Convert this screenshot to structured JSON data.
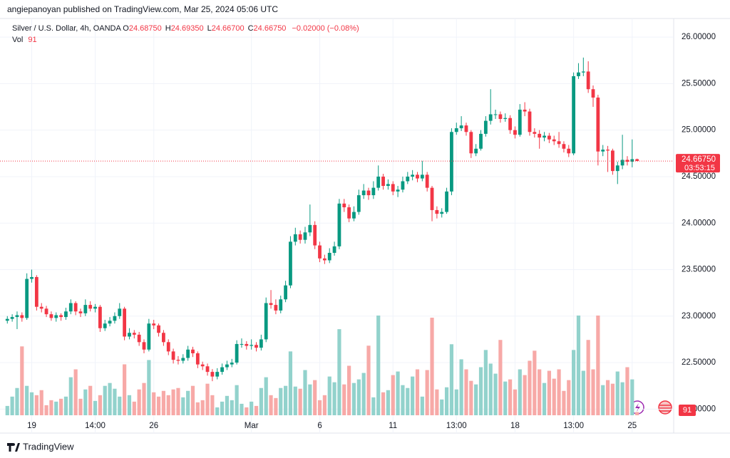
{
  "header": {
    "byline": "angiepanoyan published on TradingView.com, Mar 25, 2024 05:06 UTC",
    "footer": "TradingView"
  },
  "chart_data": {
    "type": "candlestick",
    "title": "Silver / U.S. Dollar, 4h, OANDA",
    "ohlc_legend": [
      {
        "name": "O",
        "value": 24.6875,
        "label": "24.68750"
      },
      {
        "name": "H",
        "value": 24.6935,
        "label": "24.69350"
      },
      {
        "name": "L",
        "value": 24.667,
        "label": "24.66700"
      },
      {
        "name": "C",
        "value": 24.6675,
        "label": "24.66750"
      }
    ],
    "change": "−0.02000 (−0.08%)",
    "volume_legend": {
      "name": "Vol",
      "value": 91
    },
    "last_price": {
      "value": 24.6675,
      "label": "24.66750",
      "countdown": "03:53:15"
    },
    "up_color": "#089981",
    "down_color": "#f23645",
    "up_volume_color": "#92d2cc",
    "down_volume_color": "#f7a9a7",
    "xlim": [
      -1.5,
      136.5
    ],
    "xticks": [
      {
        "value": 5,
        "label": "19"
      },
      {
        "value": 18,
        "label": "14:00"
      },
      {
        "value": 30,
        "label": "26"
      },
      {
        "value": 50,
        "label": "Mar"
      },
      {
        "value": 64,
        "label": "6"
      },
      {
        "value": 79,
        "label": "11"
      },
      {
        "value": 92,
        "label": "13:00"
      },
      {
        "value": 104,
        "label": "18"
      },
      {
        "value": 116,
        "label": "13:00"
      },
      {
        "value": 128,
        "label": "25"
      }
    ],
    "ylim": [
      21.88,
      26.2
    ],
    "yticks": [
      {
        "value": 22,
        "label": "22.00000"
      },
      {
        "value": 22.5,
        "label": "22.50000"
      },
      {
        "value": 23,
        "label": "23.00000"
      },
      {
        "value": 23.5,
        "label": "23.50000"
      },
      {
        "value": 24,
        "label": "24.00000"
      },
      {
        "value": 24.5,
        "label": "24.50000"
      },
      {
        "value": 25,
        "label": "25.00000"
      },
      {
        "value": 25.5,
        "label": "25.50000"
      },
      {
        "value": 26,
        "label": "26.00000"
      }
    ],
    "grid": true,
    "open": [
      22.95,
      22.97,
      22.99,
      23.01,
      22.98,
      23.4,
      23.42,
      23.1,
      23.08,
      23.02,
      22.98,
      23.01,
      22.99,
      23.05,
      23.14,
      23.05,
      23.03,
      23.12,
      23.08,
      23.1,
      22.87,
      22.92,
      22.95,
      23.0,
      23.08,
      22.78,
      22.82,
      22.8,
      22.72,
      22.64,
      22.92,
      22.9,
      22.82,
      22.72,
      22.62,
      22.53,
      22.52,
      22.55,
      22.64,
      22.6,
      22.48,
      22.46,
      22.4,
      22.35,
      22.4,
      22.45,
      22.48,
      22.5,
      22.7,
      22.7,
      22.68,
      22.69,
      22.66,
      22.75,
      23.14,
      23.12,
      23.06,
      23.18,
      23.33,
      23.8,
      23.88,
      23.82,
      23.9,
      23.98,
      23.76,
      23.62,
      23.6,
      23.68,
      23.75,
      24.21,
      24.17,
      24.05,
      24.12,
      24.3,
      24.35,
      24.3,
      24.38,
      24.5,
      24.4,
      24.42,
      24.34,
      24.36,
      24.45,
      24.5,
      24.52,
      24.48,
      24.52,
      24.38,
      24.14,
      24.1,
      24.12,
      24.34,
      24.98,
      25.02,
      25.05,
      24.98,
      24.75,
      24.8,
      24.96,
      25.1,
      25.17,
      25.17,
      25.12,
      25.13,
      25.0,
      24.95,
      25.22,
      25.2,
      24.98,
      24.96,
      24.92,
      24.94,
      24.9,
      24.88,
      24.85,
      24.8,
      24.75,
      25.58,
      25.62,
      25.63,
      25.44,
      25.35,
      24.77,
      24.79,
      24.78,
      24.56,
      24.62,
      24.68,
      24.66,
      24.6875
    ],
    "high": [
      23.0,
      23.02,
      23.05,
      23.04,
      23.46,
      23.5,
      23.44,
      23.14,
      23.11,
      23.05,
      23.04,
      23.03,
      23.09,
      23.18,
      23.16,
      23.08,
      23.18,
      23.16,
      23.13,
      23.12,
      22.96,
      22.99,
      23.04,
      23.14,
      23.1,
      22.87,
      22.85,
      22.83,
      22.75,
      22.97,
      22.96,
      22.92,
      22.85,
      22.75,
      22.65,
      22.57,
      22.59,
      22.68,
      22.67,
      22.62,
      22.51,
      22.49,
      22.43,
      22.44,
      22.49,
      22.52,
      22.54,
      22.74,
      22.76,
      22.73,
      22.75,
      22.72,
      22.8,
      23.2,
      23.28,
      23.18,
      23.22,
      23.38,
      23.86,
      23.95,
      23.92,
      23.96,
      24.2,
      24.02,
      23.8,
      23.66,
      23.73,
      23.8,
      24.26,
      24.26,
      24.2,
      24.18,
      24.36,
      24.42,
      24.38,
      24.45,
      24.62,
      24.53,
      24.47,
      24.45,
      24.4,
      24.5,
      24.55,
      24.57,
      24.55,
      24.67,
      24.55,
      24.4,
      24.18,
      24.16,
      24.38,
      25.02,
      25.08,
      25.15,
      25.08,
      25.0,
      24.85,
      25.0,
      25.15,
      25.44,
      25.22,
      25.2,
      25.18,
      25.16,
      25.04,
      25.28,
      25.3,
      25.23,
      25.02,
      25.0,
      24.98,
      24.97,
      24.94,
      24.98,
      24.88,
      24.84,
      25.62,
      25.72,
      25.78,
      25.74,
      25.48,
      25.38,
      24.84,
      24.83,
      24.8,
      24.66,
      24.95,
      24.72,
      24.9,
      24.6935
    ],
    "low": [
      22.92,
      22.94,
      22.86,
      22.94,
      22.96,
      23.36,
      23.06,
      23.04,
      22.99,
      22.95,
      22.94,
      22.95,
      22.96,
      23.02,
      23.01,
      22.99,
      23.0,
      23.05,
      23.04,
      22.83,
      22.84,
      22.89,
      22.92,
      22.97,
      22.74,
      22.75,
      22.76,
      22.68,
      22.6,
      22.62,
      22.86,
      22.78,
      22.68,
      22.58,
      22.49,
      22.48,
      22.49,
      22.52,
      22.56,
      22.44,
      22.42,
      22.36,
      22.3,
      22.32,
      22.37,
      22.42,
      22.45,
      22.48,
      22.66,
      22.64,
      22.64,
      22.62,
      22.63,
      22.72,
      23.08,
      23.02,
      23.03,
      23.15,
      23.3,
      23.76,
      23.78,
      23.78,
      23.86,
      23.72,
      23.58,
      23.56,
      23.57,
      23.65,
      23.72,
      24.12,
      24.01,
      24.02,
      24.09,
      24.26,
      24.25,
      24.26,
      24.35,
      24.36,
      24.36,
      24.3,
      24.28,
      24.33,
      24.42,
      24.46,
      24.44,
      24.45,
      24.34,
      24.02,
      24.05,
      24.06,
      24.1,
      24.3,
      24.95,
      24.99,
      24.94,
      24.7,
      24.72,
      24.78,
      24.93,
      25.06,
      25.12,
      25.08,
      25.09,
      24.96,
      24.91,
      24.93,
      25.15,
      24.94,
      24.92,
      24.8,
      24.88,
      24.86,
      24.84,
      24.81,
      24.76,
      24.71,
      24.73,
      25.55,
      25.58,
      25.4,
      25.25,
      24.62,
      24.72,
      24.55,
      24.52,
      24.42,
      24.58,
      24.62,
      24.6,
      24.667
    ],
    "close": [
      22.97,
      22.99,
      23.01,
      22.98,
      23.4,
      23.42,
      23.1,
      23.08,
      23.02,
      22.98,
      23.01,
      22.99,
      23.05,
      23.14,
      23.05,
      23.03,
      23.12,
      23.08,
      23.1,
      22.87,
      22.92,
      22.95,
      23.0,
      23.08,
      22.78,
      22.82,
      22.8,
      22.72,
      22.64,
      22.92,
      22.9,
      22.82,
      22.72,
      22.62,
      22.53,
      22.52,
      22.55,
      22.64,
      22.6,
      22.48,
      22.46,
      22.4,
      22.35,
      22.4,
      22.45,
      22.48,
      22.5,
      22.7,
      22.7,
      22.68,
      22.69,
      22.66,
      22.75,
      23.14,
      23.12,
      23.06,
      23.18,
      23.33,
      23.8,
      23.88,
      23.82,
      23.9,
      23.98,
      23.76,
      23.62,
      23.6,
      23.68,
      23.75,
      24.21,
      24.17,
      24.05,
      24.12,
      24.3,
      24.35,
      24.3,
      24.38,
      24.5,
      24.4,
      24.42,
      24.34,
      24.36,
      24.45,
      24.5,
      24.52,
      24.48,
      24.52,
      24.38,
      24.14,
      24.1,
      24.12,
      24.34,
      24.98,
      25.02,
      25.05,
      24.98,
      24.75,
      24.8,
      24.96,
      25.1,
      25.17,
      25.17,
      25.12,
      25.13,
      25.0,
      24.95,
      25.22,
      25.2,
      24.98,
      24.96,
      24.92,
      24.94,
      24.9,
      24.88,
      24.85,
      24.8,
      24.75,
      25.58,
      25.62,
      25.63,
      25.44,
      25.35,
      24.77,
      24.79,
      24.78,
      24.56,
      24.62,
      24.68,
      24.66,
      24.6875,
      24.6675
    ],
    "volume": [
      260,
      520,
      760,
      1920,
      820,
      640,
      560,
      700,
      280,
      420,
      380,
      460,
      520,
      1060,
      1280,
      460,
      720,
      820,
      400,
      560,
      820,
      900,
      740,
      520,
      1420,
      560,
      380,
      720,
      900,
      1540,
      640,
      520,
      680,
      560,
      720,
      760,
      500,
      680,
      820,
      360,
      420,
      880,
      560,
      220,
      380,
      540,
      420,
      840,
      320,
      220,
      380,
      260,
      760,
      1060,
      560,
      480,
      760,
      820,
      1780,
      800,
      740,
      1260,
      860,
      980,
      420,
      560,
      1080,
      920,
      2400,
      860,
      1380,
      900,
      1000,
      1180,
      1940,
      500,
      2780,
      640,
      700,
      1120,
      1220,
      840,
      760,
      1080,
      1280,
      520,
      1260,
      2720,
      720,
      440,
      780,
      1980,
      720,
      1560,
      1280,
      960,
      860,
      1340,
      1820,
      1440,
      1160,
      2100,
      940,
      1000,
      720,
      1280,
      1120,
      1520,
      1800,
      1280,
      900,
      1240,
      1020,
      1280,
      680,
      980,
      1820,
      2780,
      1240,
      2100,
      1280,
      2780,
      840,
      980,
      880,
      1220,
      920,
      1340,
      1000,
      91
    ]
  }
}
